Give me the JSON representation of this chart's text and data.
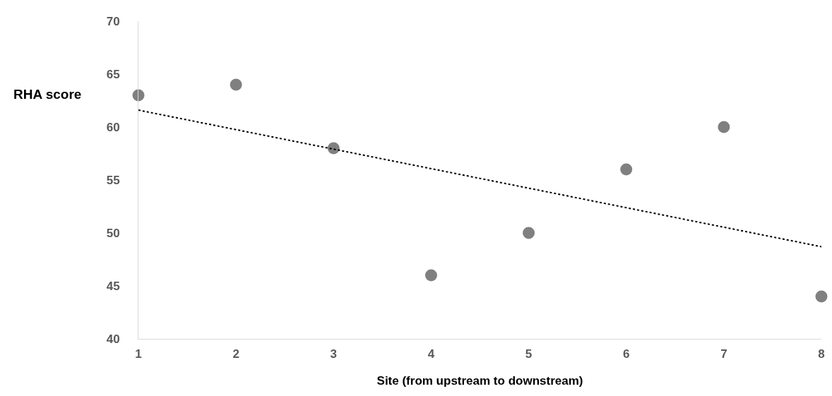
{
  "chart_data": {
    "type": "scatter",
    "xlabel": "Site (from upstream to downstream)",
    "ylabel": "RHA score",
    "x": [
      1,
      2,
      3,
      4,
      5,
      6,
      7,
      8
    ],
    "series": [
      {
        "color": "#808080",
        "marker": "circle",
        "values": [
          63,
          64,
          58,
          46,
          50,
          56,
          60,
          44
        ]
      },
      {
        "type": "line",
        "color": "#000000",
        "marker": "none",
        "line_style": "dotted",
        "x": [
          1,
          8
        ],
        "values": [
          61.6,
          48.7
        ]
      }
    ],
    "xlim": [
      1,
      8
    ],
    "xticks": [
      1,
      2,
      3,
      4,
      5,
      6,
      7,
      8
    ],
    "ylim": [
      40,
      70
    ],
    "yticks": [
      40,
      45,
      50,
      55,
      60,
      65,
      70
    ]
  }
}
